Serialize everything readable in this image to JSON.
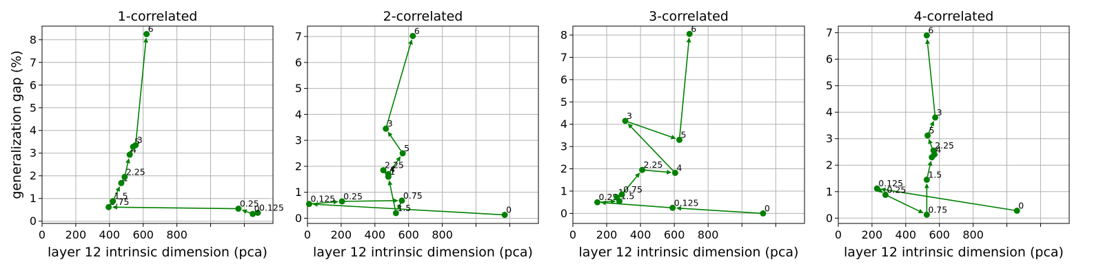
{
  "chart_data": [
    {
      "type": "line",
      "title": "1-correlated",
      "xlabel": "layer 12 intrinsic dimension (pca)",
      "ylabel": "generalization gap (%)",
      "xticks": [
        0,
        200,
        400,
        600,
        800
      ],
      "yticks": [
        0,
        1,
        2,
        3,
        4,
        5,
        6,
        7,
        8
      ],
      "xlim": [
        0,
        1370
      ],
      "ylim": [
        -0.1,
        8.6
      ],
      "color": "#008000",
      "points": [
        {
          "label": "0.125",
          "x": 1280,
          "y": 0.37
        },
        {
          "label": "0",
          "x": 1250,
          "y": 0.32
        },
        {
          "label": "0.25",
          "x": 1165,
          "y": 0.55
        },
        {
          "label": "0.75",
          "x": 395,
          "y": 0.62
        },
        {
          "label": "1.5",
          "x": 420,
          "y": 0.88
        },
        {
          "label": "1",
          "x": 470,
          "y": 1.68
        },
        {
          "label": "2.25",
          "x": 490,
          "y": 1.95
        },
        {
          "label": "4",
          "x": 520,
          "y": 2.93
        },
        {
          "label": "5",
          "x": 540,
          "y": 3.28
        },
        {
          "label": "3",
          "x": 555,
          "y": 3.35
        },
        {
          "label": "6",
          "x": 620,
          "y": 8.25
        }
      ]
    },
    {
      "type": "line",
      "title": "2-correlated",
      "xlabel": "layer 12 intrinsic dimension (pca)",
      "ylabel": "",
      "xticks": [
        0,
        200,
        400,
        600,
        800
      ],
      "yticks": [
        0,
        1,
        2,
        3,
        4,
        5,
        6,
        7
      ],
      "xlim": [
        0,
        1370
      ],
      "ylim": [
        -0.2,
        7.4
      ],
      "color": "#008000",
      "points": [
        {
          "label": "0",
          "x": 1170,
          "y": 0.13
        },
        {
          "label": "0.125",
          "x": 10,
          "y": 0.55
        },
        {
          "label": "0.25",
          "x": 205,
          "y": 0.65
        },
        {
          "label": "0.75",
          "x": 560,
          "y": 0.68
        },
        {
          "label": "1.5",
          "x": 525,
          "y": 0.2
        },
        {
          "label": "1",
          "x": 480,
          "y": 1.6
        },
        {
          "label": "2.25",
          "x": 450,
          "y": 1.85
        },
        {
          "label": "4",
          "x": 480,
          "y": 1.7
        },
        {
          "label": "5",
          "x": 565,
          "y": 2.5
        },
        {
          "label": "3",
          "x": 465,
          "y": 3.45
        },
        {
          "label": "6",
          "x": 625,
          "y": 7.02
        }
      ]
    },
    {
      "type": "line",
      "title": "3-correlated",
      "xlabel": "layer 12 intrinsic dimension (pca)",
      "ylabel": "",
      "xticks": [
        0,
        200,
        400,
        600,
        800
      ],
      "yticks": [
        0,
        1,
        2,
        3,
        4,
        5,
        6,
        7,
        8
      ],
      "xlim": [
        0,
        1370
      ],
      "ylim": [
        -0.45,
        8.4
      ],
      "color": "#008000",
      "points": [
        {
          "label": "0",
          "x": 1125,
          "y": 0.0
        },
        {
          "label": "0.125",
          "x": 590,
          "y": 0.25
        },
        {
          "label": "0.25",
          "x": 145,
          "y": 0.5
        },
        {
          "label": "1.5",
          "x": 275,
          "y": 0.55
        },
        {
          "label": "1",
          "x": 260,
          "y": 0.72
        },
        {
          "label": "0.75",
          "x": 290,
          "y": 0.85
        },
        {
          "label": "2.25",
          "x": 410,
          "y": 1.95
        },
        {
          "label": "4",
          "x": 605,
          "y": 1.82
        },
        {
          "label": "3",
          "x": 310,
          "y": 4.15
        },
        {
          "label": "5",
          "x": 630,
          "y": 3.3
        },
        {
          "label": "6",
          "x": 690,
          "y": 8.05
        }
      ]
    },
    {
      "type": "line",
      "title": "4-correlated",
      "xlabel": "layer 12 intrinsic dimension (pca)",
      "ylabel": "",
      "xticks": [
        0,
        200,
        400,
        600,
        800
      ],
      "yticks": [
        0,
        1,
        2,
        3,
        4,
        5,
        6,
        7
      ],
      "xlim": [
        0,
        1370
      ],
      "ylim": [
        -0.2,
        7.25
      ],
      "color": "#008000",
      "points": [
        {
          "label": "0",
          "x": 1060,
          "y": 0.28
        },
        {
          "label": "0.125",
          "x": 230,
          "y": 1.12
        },
        {
          "label": "0.25",
          "x": 280,
          "y": 0.88
        },
        {
          "label": "0.75",
          "x": 525,
          "y": 0.13
        },
        {
          "label": "1.5",
          "x": 525,
          "y": 1.45
        },
        {
          "label": "1",
          "x": 555,
          "y": 2.3
        },
        {
          "label": "2.25",
          "x": 565,
          "y": 2.55
        },
        {
          "label": "4",
          "x": 570,
          "y": 2.4
        },
        {
          "label": "5",
          "x": 530,
          "y": 3.12
        },
        {
          "label": "3",
          "x": 575,
          "y": 3.8
        },
        {
          "label": "6",
          "x": 525,
          "y": 6.9
        }
      ]
    }
  ]
}
